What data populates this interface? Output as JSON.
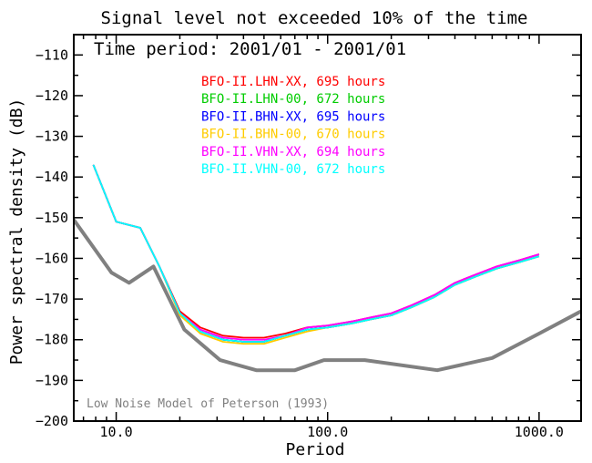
{
  "chart_data": {
    "type": "line",
    "title": "Signal level not exceeded 10% of the time",
    "subtitle": "Time period: 2001/01 - 2001/01",
    "xlabel": "Period",
    "ylabel": "Power spectral density (dB)",
    "x_scale": "log",
    "xlim": [
      6.3,
      1580
    ],
    "ylim": [
      -200,
      -105
    ],
    "x_ticks": [
      {
        "value": 10,
        "label": "10.0"
      },
      {
        "value": 100,
        "label": "100.0"
      },
      {
        "value": 1000,
        "label": "1000.0"
      }
    ],
    "y_ticks": [
      {
        "value": -110,
        "label": "−110"
      },
      {
        "value": -120,
        "label": "−120"
      },
      {
        "value": -130,
        "label": "−130"
      },
      {
        "value": -140,
        "label": "−140"
      },
      {
        "value": -150,
        "label": "−150"
      },
      {
        "value": -160,
        "label": "−160"
      },
      {
        "value": -170,
        "label": "−170"
      },
      {
        "value": -180,
        "label": "−180"
      },
      {
        "value": -190,
        "label": "−190"
      },
      {
        "value": -200,
        "label": "−200"
      }
    ],
    "legend_position": "top-center",
    "series": [
      {
        "name": "BFO-II.LHN-XX, 695 hours",
        "color": "#ff0000",
        "x": [
          7.8,
          10,
          13,
          16,
          20,
          25,
          32,
          40,
          50,
          63,
          80,
          100,
          130,
          160,
          200,
          250,
          320,
          400,
          500,
          630,
          800,
          1000
        ],
        "y": [
          -137,
          -151,
          -152.5,
          -162,
          -173,
          -177,
          -179,
          -179.5,
          -179.5,
          -178.5,
          -177,
          -176.5,
          -175.5,
          -174.5,
          -173.5,
          -171.5,
          -169,
          -166,
          -164,
          -162,
          -160.5,
          -159
        ]
      },
      {
        "name": "BFO-II.LHN-00, 672 hours",
        "color": "#00cc00",
        "x": [
          7.8,
          10,
          13,
          16,
          20,
          25,
          32,
          40,
          50,
          63,
          80,
          100,
          130,
          160,
          200,
          250,
          320,
          400,
          500,
          630,
          800,
          1000
        ],
        "y": [
          -137,
          -151,
          -152.5,
          -162,
          -173.5,
          -178,
          -180,
          -180.5,
          -180.5,
          -179,
          -177.5,
          -177,
          -176,
          -175,
          -174,
          -172,
          -169.5,
          -166.5,
          -164.5,
          -162.5,
          -161,
          -159.5
        ]
      },
      {
        "name": "BFO-II.BHN-XX, 695 hours",
        "color": "#0000ff",
        "x": [
          7.8,
          10,
          13,
          16,
          20,
          25,
          32,
          40,
          50,
          63,
          80,
          100,
          130,
          160,
          200,
          250,
          320,
          400,
          500,
          630,
          800,
          1000
        ],
        "y": [
          -137,
          -151,
          -152.5,
          -162,
          -173.5,
          -178,
          -180,
          -180.5,
          -180.5,
          -179,
          -177.5,
          -177,
          -176,
          -175,
          -174,
          -172,
          -169.5,
          -166.5,
          -164.5,
          -162.5,
          -161,
          -159.5
        ]
      },
      {
        "name": "BFO-II.BHN-00, 670 hours",
        "color": "#ffcc00",
        "x": [
          7.8,
          10,
          13,
          16,
          20,
          25,
          32,
          40,
          50,
          63,
          80,
          100,
          130,
          160,
          200,
          250,
          320,
          400,
          500,
          630,
          800,
          1000
        ],
        "y": [
          -137,
          -151,
          -152.5,
          -162,
          -174,
          -178.5,
          -180.5,
          -181,
          -181,
          -179.5,
          -178,
          -177,
          -176,
          -175,
          -174,
          -172,
          -169.5,
          -166.5,
          -164.5,
          -162.5,
          -161,
          -159.5
        ]
      },
      {
        "name": "BFO-II.VHN-XX, 694 hours",
        "color": "#ff00ff",
        "x": [
          7.8,
          10,
          13,
          16,
          20,
          25,
          32,
          40,
          50,
          63,
          80,
          100,
          130,
          160,
          200,
          250,
          320,
          400,
          500,
          630,
          800,
          1000
        ],
        "y": [
          -137,
          -151,
          -152.5,
          -162,
          -173.5,
          -177.5,
          -179.5,
          -180,
          -180,
          -179,
          -177,
          -176.5,
          -175.5,
          -174.5,
          -173.5,
          -171.5,
          -169,
          -166,
          -164,
          -162,
          -160.5,
          -159
        ]
      },
      {
        "name": "BFO-II.VHN-00, 672 hours",
        "color": "#00ffff",
        "x": [
          7.8,
          10,
          13,
          16,
          20,
          25,
          32,
          40,
          50,
          63,
          80,
          100,
          130,
          160,
          200,
          250,
          320,
          400,
          500,
          630,
          800,
          1000
        ],
        "y": [
          -137,
          -151,
          -152.5,
          -162,
          -173.5,
          -178,
          -180,
          -180.5,
          -180.5,
          -179,
          -177.5,
          -177,
          -176,
          -175,
          -174,
          -172,
          -169.5,
          -166.5,
          -164.5,
          -162.5,
          -161,
          -159.5
        ]
      }
    ],
    "reference": {
      "name": "Low Noise Model of Peterson (1993)",
      "color": "#808080",
      "x": [
        6.3,
        9.5,
        11.5,
        15,
        21,
        31,
        46,
        70,
        96,
        150,
        330,
        600,
        1000,
        1580
      ],
      "y": [
        -150.5,
        -163.5,
        -166,
        -162,
        -177.5,
        -185,
        -187.5,
        -187.5,
        -185,
        -185,
        -187.5,
        -184.5,
        -178.5,
        -173
      ]
    }
  }
}
